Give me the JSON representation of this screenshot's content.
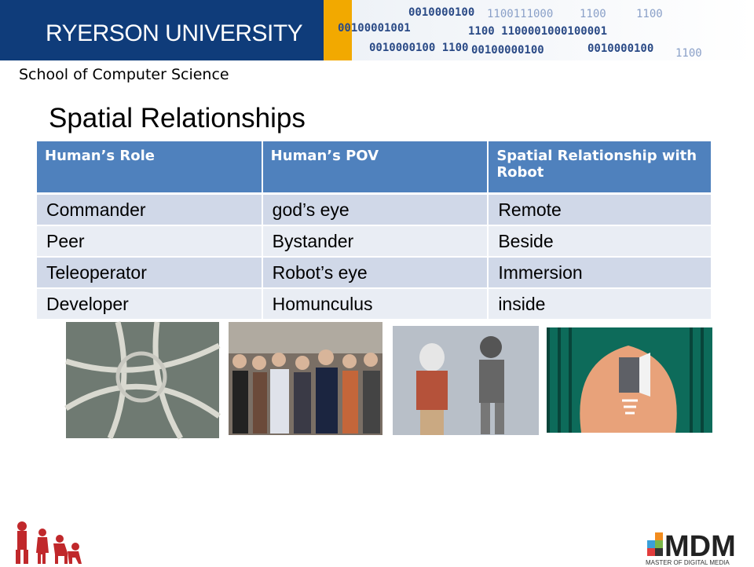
{
  "header": {
    "university": "RYERSON UNIVERSITY",
    "binary": [
      "0010000100",
      "00100001001",
      "1100111000",
      "1100",
      "1100",
      "1100 1100001000100001",
      "0010000100 1100",
      "00100000100",
      "0010000100",
      "1100"
    ]
  },
  "department": "School of Computer Science",
  "title": "Spatial Relationships",
  "table": {
    "header": [
      "Human’s Role",
      "Human’s POV",
      "Spatial Relationship with Robot"
    ],
    "rows": [
      [
        "Commander",
        "god’s eye",
        "Remote"
      ],
      [
        "Peer",
        "Bystander",
        "Beside"
      ],
      [
        "Teleoperator",
        "Robot’s eye",
        "Immersion"
      ],
      [
        "Developer",
        "Homunculus",
        "inside"
      ]
    ]
  },
  "logo": {
    "name": "MDM",
    "caption": "MASTER OF DIGITAL MEDIA"
  }
}
